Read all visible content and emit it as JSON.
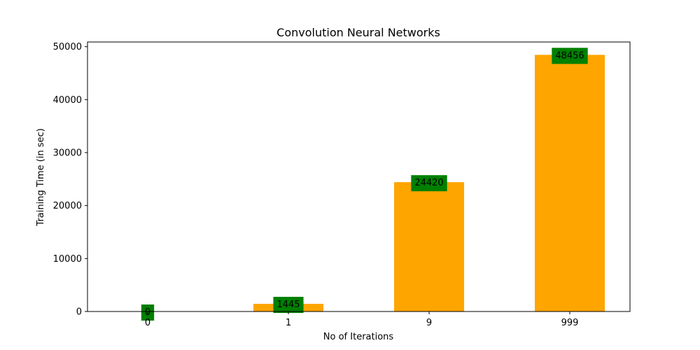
{
  "chart_data": {
    "type": "bar",
    "title": "Convolution Neural Networks",
    "xlabel": "No of Iterations",
    "ylabel": "Training Time (in sec)",
    "categories": [
      "0",
      "1",
      "9",
      "999"
    ],
    "values": [
      0,
      1445,
      24420,
      48456
    ],
    "data_labels": [
      "0",
      "1445",
      "24420",
      "48456"
    ],
    "ylim": [
      0,
      50880
    ],
    "yticks": [
      0,
      10000,
      20000,
      30000,
      40000,
      50000
    ],
    "ytick_labels": [
      "0",
      "10000",
      "20000",
      "30000",
      "40000",
      "50000"
    ],
    "grid": false,
    "bar_color": "#ffa500",
    "label_box_color": "#008000"
  }
}
